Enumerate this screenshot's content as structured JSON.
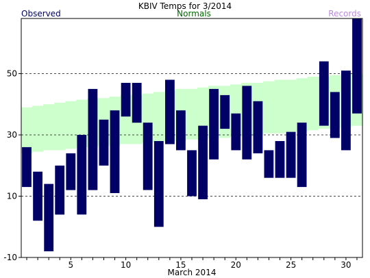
{
  "chart_data": {
    "type": "bar",
    "title": "KBIV Temps for 3/2014",
    "xlabel": "March 2014",
    "ylabel": "",
    "legend": [
      {
        "label": "Observed",
        "color": "#000066"
      },
      {
        "label": "Normals",
        "color": "#006600"
      },
      {
        "label": "Records",
        "color": "#bb88dd"
      }
    ],
    "ylim": [
      -10,
      68
    ],
    "xlim": [
      0.5,
      31.5
    ],
    "y_ticks": [
      -10,
      10,
      30,
      50
    ],
    "x_ticks": [
      5,
      10,
      15,
      20,
      25,
      30
    ],
    "grid": "dashed horizontal lines at 10, 30, 50",
    "colors": {
      "observed_bar": "#000066",
      "normals_band": "#ccffcc",
      "grid": "#444444"
    },
    "days": [
      1,
      2,
      3,
      4,
      5,
      6,
      7,
      8,
      9,
      10,
      11,
      12,
      13,
      14,
      15,
      16,
      17,
      18,
      19,
      20,
      21,
      22,
      23,
      24,
      25,
      26,
      27,
      28,
      29,
      30,
      31
    ],
    "observed": {
      "high": [
        26,
        18,
        14,
        20,
        24,
        30,
        45,
        35,
        38,
        47,
        47,
        34,
        28,
        48,
        38,
        25,
        33,
        45,
        43,
        37,
        46,
        41,
        25,
        28,
        31,
        34,
        null,
        54,
        44,
        51,
        68
      ],
      "low": [
        13,
        2,
        -8,
        4,
        12,
        4,
        12,
        20,
        11,
        36,
        34,
        12,
        0,
        27,
        25,
        10,
        9,
        22,
        32,
        25,
        22,
        24,
        16,
        16,
        16,
        13,
        null,
        33,
        29,
        25,
        37
      ]
    },
    "normals": {
      "high": [
        39,
        39.5,
        40,
        40.5,
        41,
        41.5,
        42,
        42,
        42.5,
        43,
        43,
        43.5,
        44,
        44.5,
        45,
        45,
        45.5,
        46,
        46,
        46.5,
        47,
        47,
        47.5,
        48,
        48,
        48.5,
        49,
        49,
        49.5,
        50,
        50
      ],
      "low": [
        24,
        24.5,
        25,
        25,
        25.5,
        26,
        26,
        26.5,
        26.5,
        27,
        27,
        27.5,
        27.5,
        28,
        28,
        28.5,
        28.5,
        29,
        29,
        29.5,
        29.5,
        30,
        30.5,
        30.5,
        31,
        31,
        31.5,
        32,
        32,
        32.5,
        33
      ]
    }
  }
}
